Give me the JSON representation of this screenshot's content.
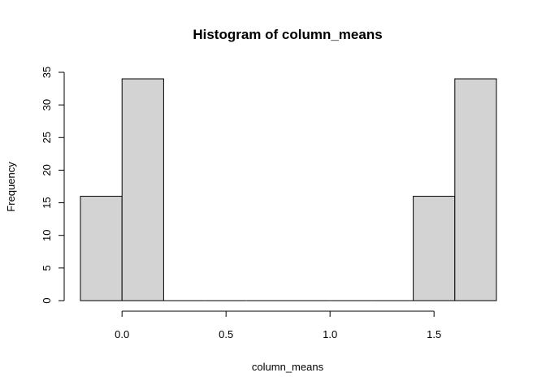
{
  "chart_data": {
    "type": "bar",
    "title": "Histogram of column_means",
    "xlabel": "column_means",
    "ylabel": "Frequency",
    "bins": [
      {
        "start": -0.2,
        "end": 0.0,
        "count": 16
      },
      {
        "start": 0.0,
        "end": 0.2,
        "count": 34
      },
      {
        "start": 0.2,
        "end": 0.4,
        "count": 0
      },
      {
        "start": 0.4,
        "end": 0.6,
        "count": 0
      },
      {
        "start": 0.6,
        "end": 0.8,
        "count": 0
      },
      {
        "start": 0.8,
        "end": 1.0,
        "count": 0
      },
      {
        "start": 1.0,
        "end": 1.2,
        "count": 0
      },
      {
        "start": 1.2,
        "end": 1.4,
        "count": 0
      },
      {
        "start": 1.4,
        "end": 1.6,
        "count": 16
      },
      {
        "start": 1.6,
        "end": 1.8,
        "count": 34
      }
    ],
    "xlim": [
      -0.2,
      1.8
    ],
    "ylim": [
      0,
      35
    ],
    "xticks": [
      0.0,
      0.5,
      1.0,
      1.5
    ],
    "xtick_labels": [
      "0.0",
      "0.5",
      "1.0",
      "1.5"
    ],
    "yticks": [
      0,
      5,
      10,
      15,
      20,
      25,
      30,
      35
    ],
    "ytick_labels": [
      "0",
      "5",
      "10",
      "15",
      "20",
      "25",
      "30",
      "35"
    ],
    "bar_fill": "#d3d3d3",
    "bar_stroke": "#000000",
    "grid": false,
    "legend": "none"
  }
}
